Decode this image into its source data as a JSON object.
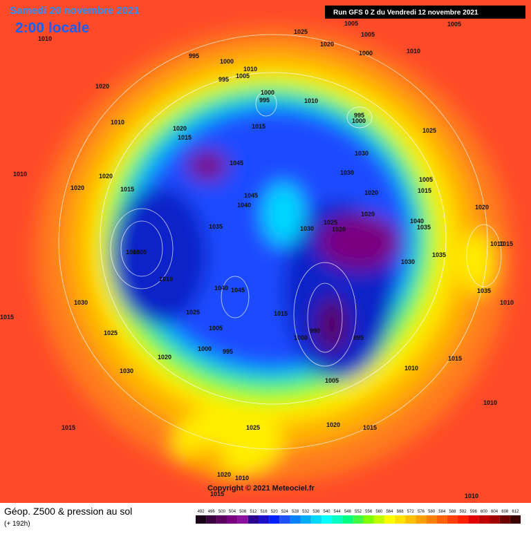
{
  "header": {
    "date": "Samedi 20 novembre 2021",
    "time": "2:00 locale",
    "run": "Run GFS 0 Z du Vendredi 12 novembre 2021"
  },
  "map": {
    "copyright": "Copyright © 2021 Meteociel.fr",
    "isobar_labels": [
      "1025",
      "1005",
      "1005",
      "1020",
      "1000",
      "1010",
      "1005",
      "1010",
      "995",
      "1000",
      "1010",
      "1005",
      "995",
      "1020",
      "1000",
      "995",
      "1010",
      "995",
      "1000",
      "1010",
      "1015",
      "1025",
      "1020",
      "1015",
      "1045",
      "1030",
      "1030",
      "1010",
      "1020",
      "1005",
      "1015",
      "1020",
      "1015",
      "1045",
      "1040",
      "1020",
      "1020",
      "1025",
      "1020",
      "1040",
      "1035",
      "1020",
      "1035",
      "1030",
      "1010",
      "1015",
      "1005",
      "1005",
      "1010",
      "1035",
      "1030",
      "1040",
      "1045",
      "1030",
      "1015",
      "1035",
      "1010",
      "1015",
      "1025",
      "1025",
      "1005",
      "990",
      "995",
      "1000",
      "1000",
      "995",
      "1020",
      "1030",
      "1015",
      "1005",
      "1010",
      "1010",
      "1015",
      "1020",
      "1025",
      "1015",
      "1020",
      "1010",
      "1015",
      "1010"
    ]
  },
  "footer": {
    "title": "Géop. Z500 & pression au sol",
    "lead": "(+ 192h)"
  },
  "legend": {
    "values": [
      492,
      496,
      500,
      504,
      508,
      512,
      516,
      520,
      524,
      528,
      532,
      536,
      540,
      544,
      548,
      552,
      556,
      560,
      564,
      568,
      572,
      576,
      580,
      584,
      588,
      592,
      596,
      600,
      604,
      608,
      612
    ],
    "colors": [
      "#1a0018",
      "#3c0040",
      "#5a0060",
      "#7a0080",
      "#8c10a0",
      "#2a0090",
      "#1c10c8",
      "#0020ff",
      "#1e50ff",
      "#0080ff",
      "#00aaff",
      "#00d8ff",
      "#00ffff",
      "#00ffc0",
      "#00ff80",
      "#40ff40",
      "#80ff00",
      "#c0ff00",
      "#ffff00",
      "#ffe000",
      "#ffc000",
      "#ffa000",
      "#ff8000",
      "#ff6000",
      "#ff4000",
      "#ff2000",
      "#e00000",
      "#c00000",
      "#a00000",
      "#700000",
      "#3a0000"
    ]
  }
}
